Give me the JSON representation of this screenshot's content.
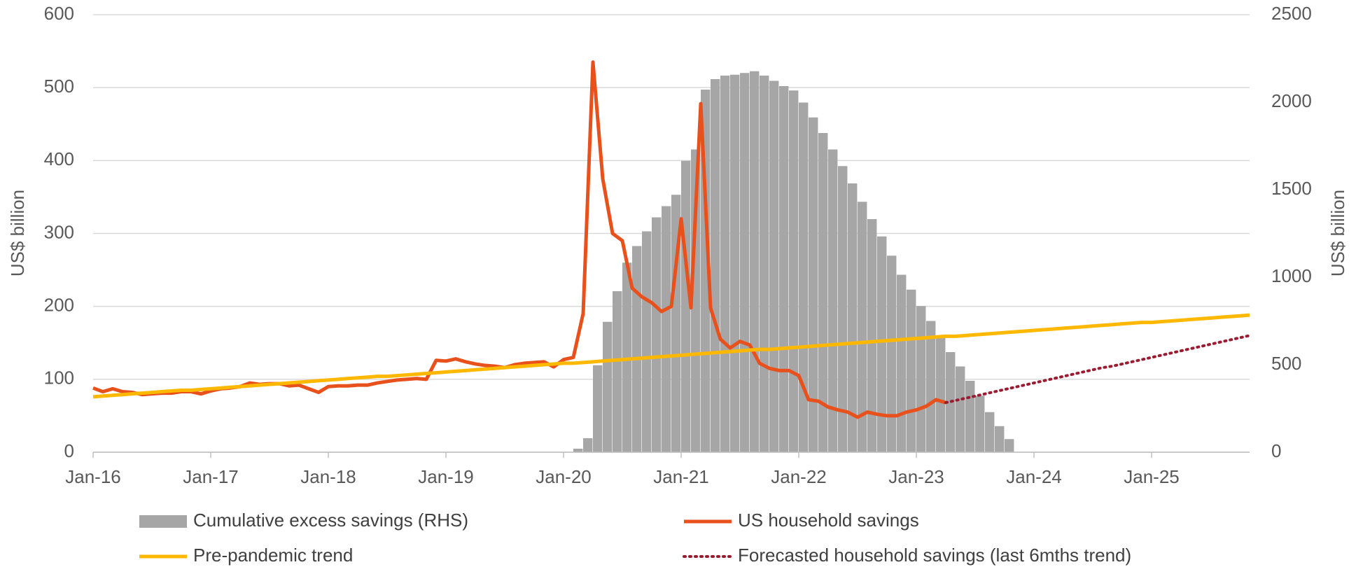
{
  "chart_data": {
    "type": "combo",
    "y_label": "US$ billion",
    "y2_label": "US$ billion",
    "ylim": [
      0,
      600
    ],
    "yticks": [
      0,
      100,
      200,
      300,
      400,
      500,
      600
    ],
    "y2lim": [
      0,
      2500
    ],
    "y2ticks": [
      0,
      500,
      1000,
      1500,
      2000,
      2500
    ],
    "grid": true,
    "legend": "bottom",
    "categories": [
      "Jan-16",
      null,
      null,
      null,
      null,
      null,
      null,
      null,
      null,
      null,
      null,
      null,
      "Jan-17",
      null,
      null,
      null,
      null,
      null,
      null,
      null,
      null,
      null,
      null,
      null,
      "Jan-18",
      null,
      null,
      null,
      null,
      null,
      null,
      null,
      null,
      null,
      null,
      null,
      "Jan-19",
      null,
      null,
      null,
      null,
      null,
      null,
      null,
      null,
      null,
      null,
      null,
      "Jan-20",
      null,
      null,
      null,
      null,
      null,
      null,
      null,
      null,
      null,
      null,
      null,
      "Jan-21",
      null,
      null,
      null,
      null,
      null,
      null,
      null,
      null,
      null,
      null,
      null,
      "Jan-22",
      null,
      null,
      null,
      null,
      null,
      null,
      null,
      null,
      null,
      null,
      null,
      "Jan-23",
      null,
      null,
      null,
      null,
      null,
      null,
      null,
      null,
      null,
      null,
      null,
      "Jan-24",
      null,
      null,
      null,
      null,
      null,
      null,
      null,
      null,
      null,
      null,
      null,
      "Jan-25",
      null,
      null,
      null,
      null,
      null,
      null,
      null,
      null,
      null,
      null
    ],
    "series": [
      {
        "name": "Cumulative excess savings (RHS)",
        "type": "bar",
        "axis": "y2",
        "color": "#a6a6a6",
        "values": [
          null,
          null,
          null,
          null,
          null,
          null,
          null,
          null,
          null,
          null,
          null,
          null,
          null,
          null,
          null,
          null,
          null,
          null,
          null,
          null,
          null,
          null,
          null,
          null,
          null,
          null,
          null,
          null,
          null,
          null,
          null,
          null,
          null,
          null,
          null,
          null,
          null,
          null,
          null,
          null,
          null,
          null,
          null,
          null,
          null,
          null,
          null,
          null,
          null,
          20,
          80,
          497,
          745,
          920,
          1083,
          1178,
          1262,
          1342,
          1406,
          1471,
          1665,
          1730,
          2072,
          2132,
          2152,
          2157,
          2167,
          2177,
          2152,
          2122,
          2092,
          2067,
          1998,
          1913,
          1824,
          1730,
          1635,
          1536,
          1431,
          1332,
          1233,
          1123,
          1014,
          929,
          835,
          750,
          660,
          572,
          490,
          408,
          323,
          229,
          149,
          75,
          null,
          null,
          null,
          null,
          null,
          null,
          null,
          null,
          null,
          null,
          null,
          null,
          null,
          null,
          null,
          null,
          null,
          null,
          null,
          null,
          null,
          null,
          null,
          null,
          null
        ]
      },
      {
        "name": "US household savings",
        "type": "line",
        "color": "#e8501c",
        "values": [
          88,
          83,
          87,
          83,
          82,
          79,
          80,
          81,
          81,
          83,
          83,
          80,
          84,
          87,
          88,
          90,
          95,
          93,
          94,
          94,
          91,
          92,
          87,
          82,
          90,
          91,
          91,
          92,
          92,
          95,
          97,
          99,
          100,
          101,
          100,
          126,
          125,
          128,
          124,
          121,
          119,
          118,
          116,
          120,
          122,
          123,
          124,
          117,
          127,
          130,
          190,
          535,
          375,
          300,
          290,
          225,
          213,
          205,
          193,
          200,
          320,
          198,
          478,
          198,
          155,
          143,
          152,
          147,
          122,
          115,
          112,
          112,
          105,
          72,
          70,
          62,
          58,
          55,
          48,
          55,
          52,
          50,
          50,
          55,
          58,
          63,
          72,
          68,
          null,
          null,
          null,
          null,
          null,
          null,
          null,
          null,
          null,
          null,
          null,
          null,
          null,
          null,
          null,
          null,
          null,
          null,
          null,
          null,
          null,
          null,
          null,
          null,
          null,
          null,
          null,
          null,
          null,
          null,
          null
        ]
      },
      {
        "name": "Pre-pandemic trend",
        "type": "line",
        "color": "#ffb800",
        "values": [
          76,
          77,
          78,
          79,
          80,
          81,
          82,
          83,
          84,
          85,
          85,
          86,
          87,
          88,
          89,
          90,
          91,
          92,
          93,
          94,
          95,
          96,
          97,
          98,
          99,
          100,
          101,
          102,
          103,
          104,
          104,
          105,
          106,
          107,
          108,
          109,
          110,
          111,
          112,
          113,
          114,
          115,
          116,
          117,
          118,
          119,
          120,
          121,
          122,
          122,
          123,
          124,
          125,
          126,
          127,
          128,
          129,
          130,
          131,
          132,
          133,
          134,
          135,
          136,
          137,
          138,
          139,
          140,
          141,
          141,
          142,
          143,
          144,
          145,
          146,
          147,
          148,
          149,
          150,
          151,
          152,
          153,
          154,
          155,
          156,
          157,
          158,
          159,
          159,
          160,
          161,
          162,
          163,
          164,
          165,
          166,
          167,
          168,
          169,
          170,
          171,
          172,
          173,
          174,
          175,
          176,
          177,
          178,
          178,
          179,
          180,
          181,
          182,
          183,
          184,
          185,
          186,
          187,
          188
        ]
      },
      {
        "name": "Forecasted household savings (last 6mths trend)",
        "type": "line",
        "style": "dotted",
        "color": "#9b1b30",
        "values": [
          null,
          null,
          null,
          null,
          null,
          null,
          null,
          null,
          null,
          null,
          null,
          null,
          null,
          null,
          null,
          null,
          null,
          null,
          null,
          null,
          null,
          null,
          null,
          null,
          null,
          null,
          null,
          null,
          null,
          null,
          null,
          null,
          null,
          null,
          null,
          null,
          null,
          null,
          null,
          null,
          null,
          null,
          null,
          null,
          null,
          null,
          null,
          null,
          null,
          null,
          null,
          null,
          null,
          null,
          null,
          null,
          null,
          null,
          null,
          null,
          null,
          null,
          null,
          null,
          null,
          null,
          null,
          null,
          null,
          null,
          null,
          null,
          null,
          null,
          null,
          null,
          null,
          null,
          null,
          null,
          null,
          null,
          null,
          null,
          null,
          null,
          null,
          68,
          71,
          74,
          77,
          80,
          83,
          86,
          89,
          92,
          95,
          98,
          101,
          104,
          107,
          110,
          113,
          116,
          118,
          121,
          124,
          127,
          130,
          133,
          136,
          139,
          142,
          145,
          148,
          151,
          154,
          157,
          160
        ]
      }
    ]
  }
}
